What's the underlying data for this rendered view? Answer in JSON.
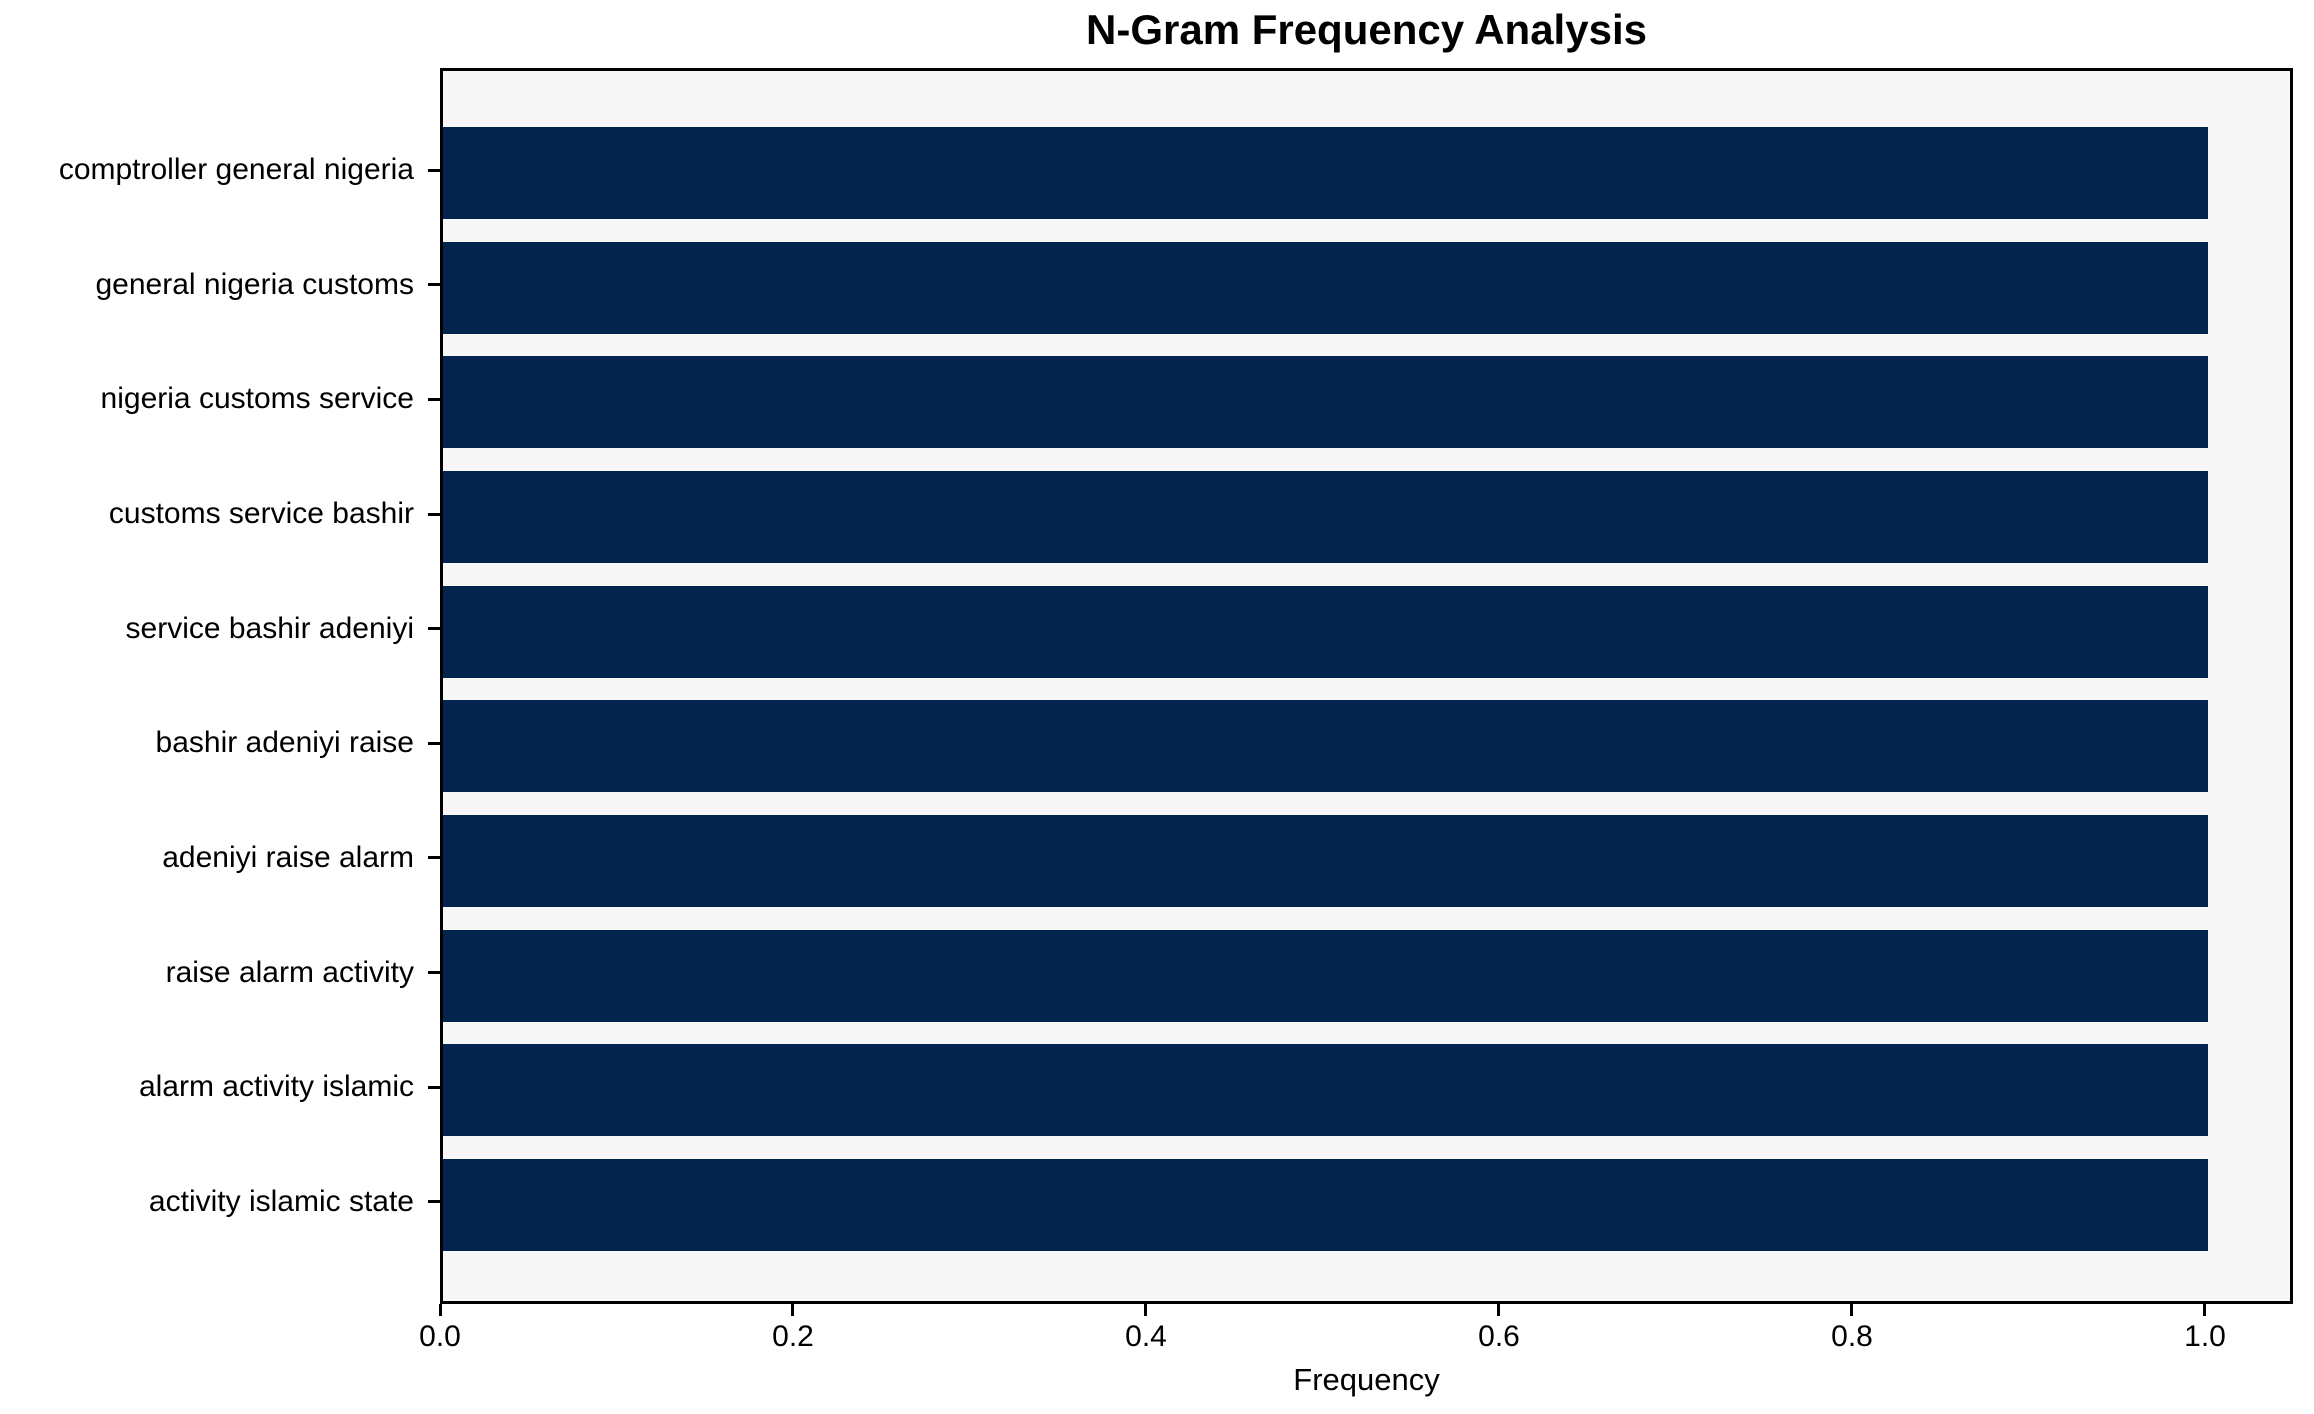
{
  "chart_data": {
    "type": "bar",
    "orientation": "horizontal",
    "title": "N-Gram Frequency Analysis",
    "xlabel": "Frequency",
    "ylabel": "",
    "categories": [
      "comptroller general nigeria",
      "general nigeria customs",
      "nigeria customs service",
      "customs service bashir",
      "service bashir adeniyi",
      "bashir adeniyi raise",
      "adeniyi raise alarm",
      "raise alarm activity",
      "alarm activity islamic",
      "activity islamic state"
    ],
    "values": [
      1.0,
      1.0,
      1.0,
      1.0,
      1.0,
      1.0,
      1.0,
      1.0,
      1.0,
      1.0
    ],
    "xlim": [
      0,
      1.05
    ],
    "xticks": [
      0.0,
      0.2,
      0.4,
      0.6,
      0.8,
      1.0
    ],
    "xtick_labels": [
      "0.0",
      "0.2",
      "0.4",
      "0.6",
      "0.8",
      "1.0"
    ],
    "grid": false,
    "legend": null,
    "bar_color": "#03244d",
    "plot_bg_color": "#f7f7f8",
    "frame_color": "#000000"
  }
}
